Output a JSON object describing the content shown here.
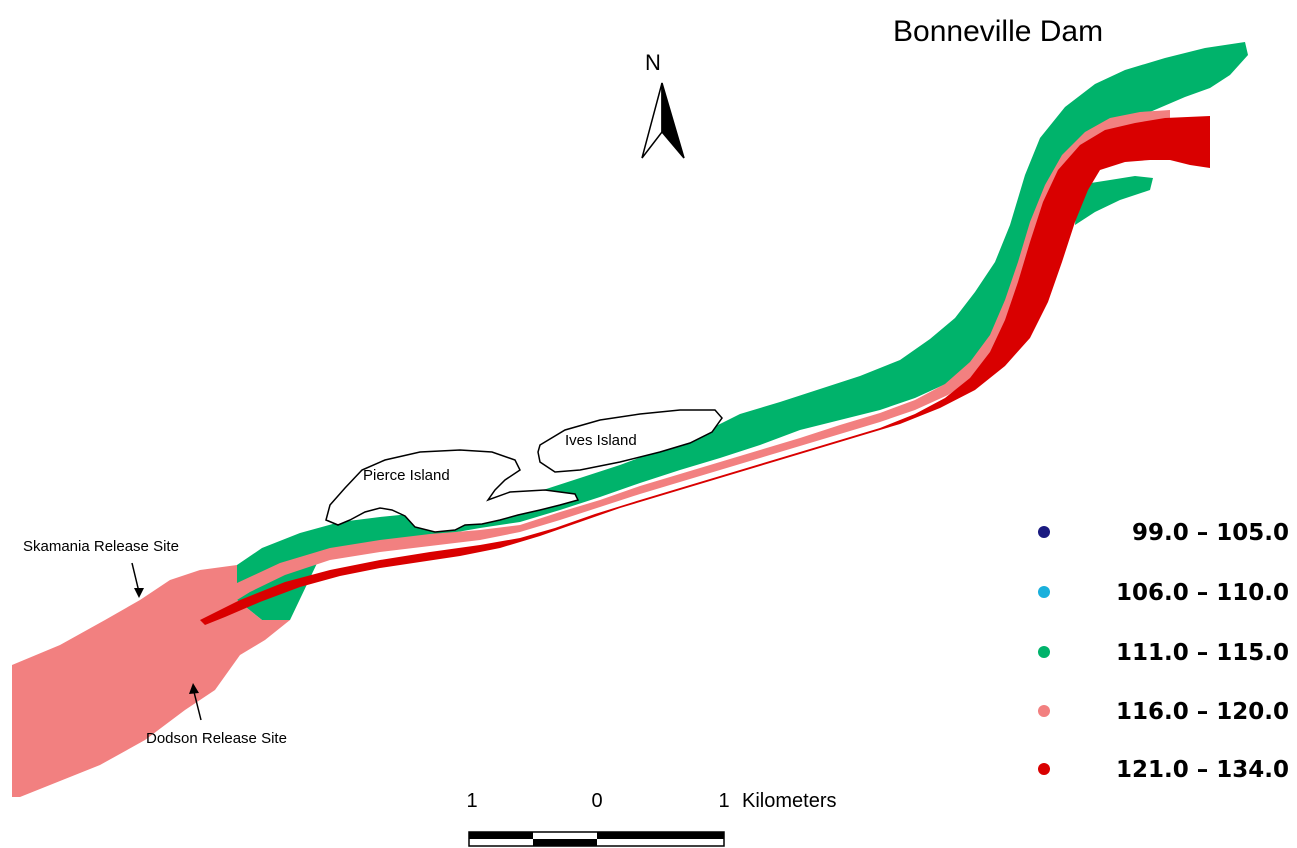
{
  "map": {
    "title": "Bonneville Dam",
    "north_label": "N",
    "islands": [
      {
        "id": "ives",
        "label": "Ives Island"
      },
      {
        "id": "pierce",
        "label": "Pierce Island"
      }
    ],
    "release_sites": [
      {
        "id": "skamania",
        "label": "Skamania Release Site"
      },
      {
        "id": "dodson",
        "label": "Dodson Release Site"
      }
    ],
    "scale_bar": {
      "labels": [
        "1",
        "0",
        "1"
      ],
      "unit": "Kilometers"
    },
    "legend": [
      {
        "range": "99.0 – 105.0",
        "color": "#1a1a80"
      },
      {
        "range": "106.0 – 110.0",
        "color": "#1ab0dc"
      },
      {
        "range": "111.0 – 115.0",
        "color": "#00b36b"
      },
      {
        "range": "116.0 – 120.0",
        "color": "#f28080"
      },
      {
        "range": "121.0 – 134.0",
        "color": "#d90000"
      }
    ]
  }
}
